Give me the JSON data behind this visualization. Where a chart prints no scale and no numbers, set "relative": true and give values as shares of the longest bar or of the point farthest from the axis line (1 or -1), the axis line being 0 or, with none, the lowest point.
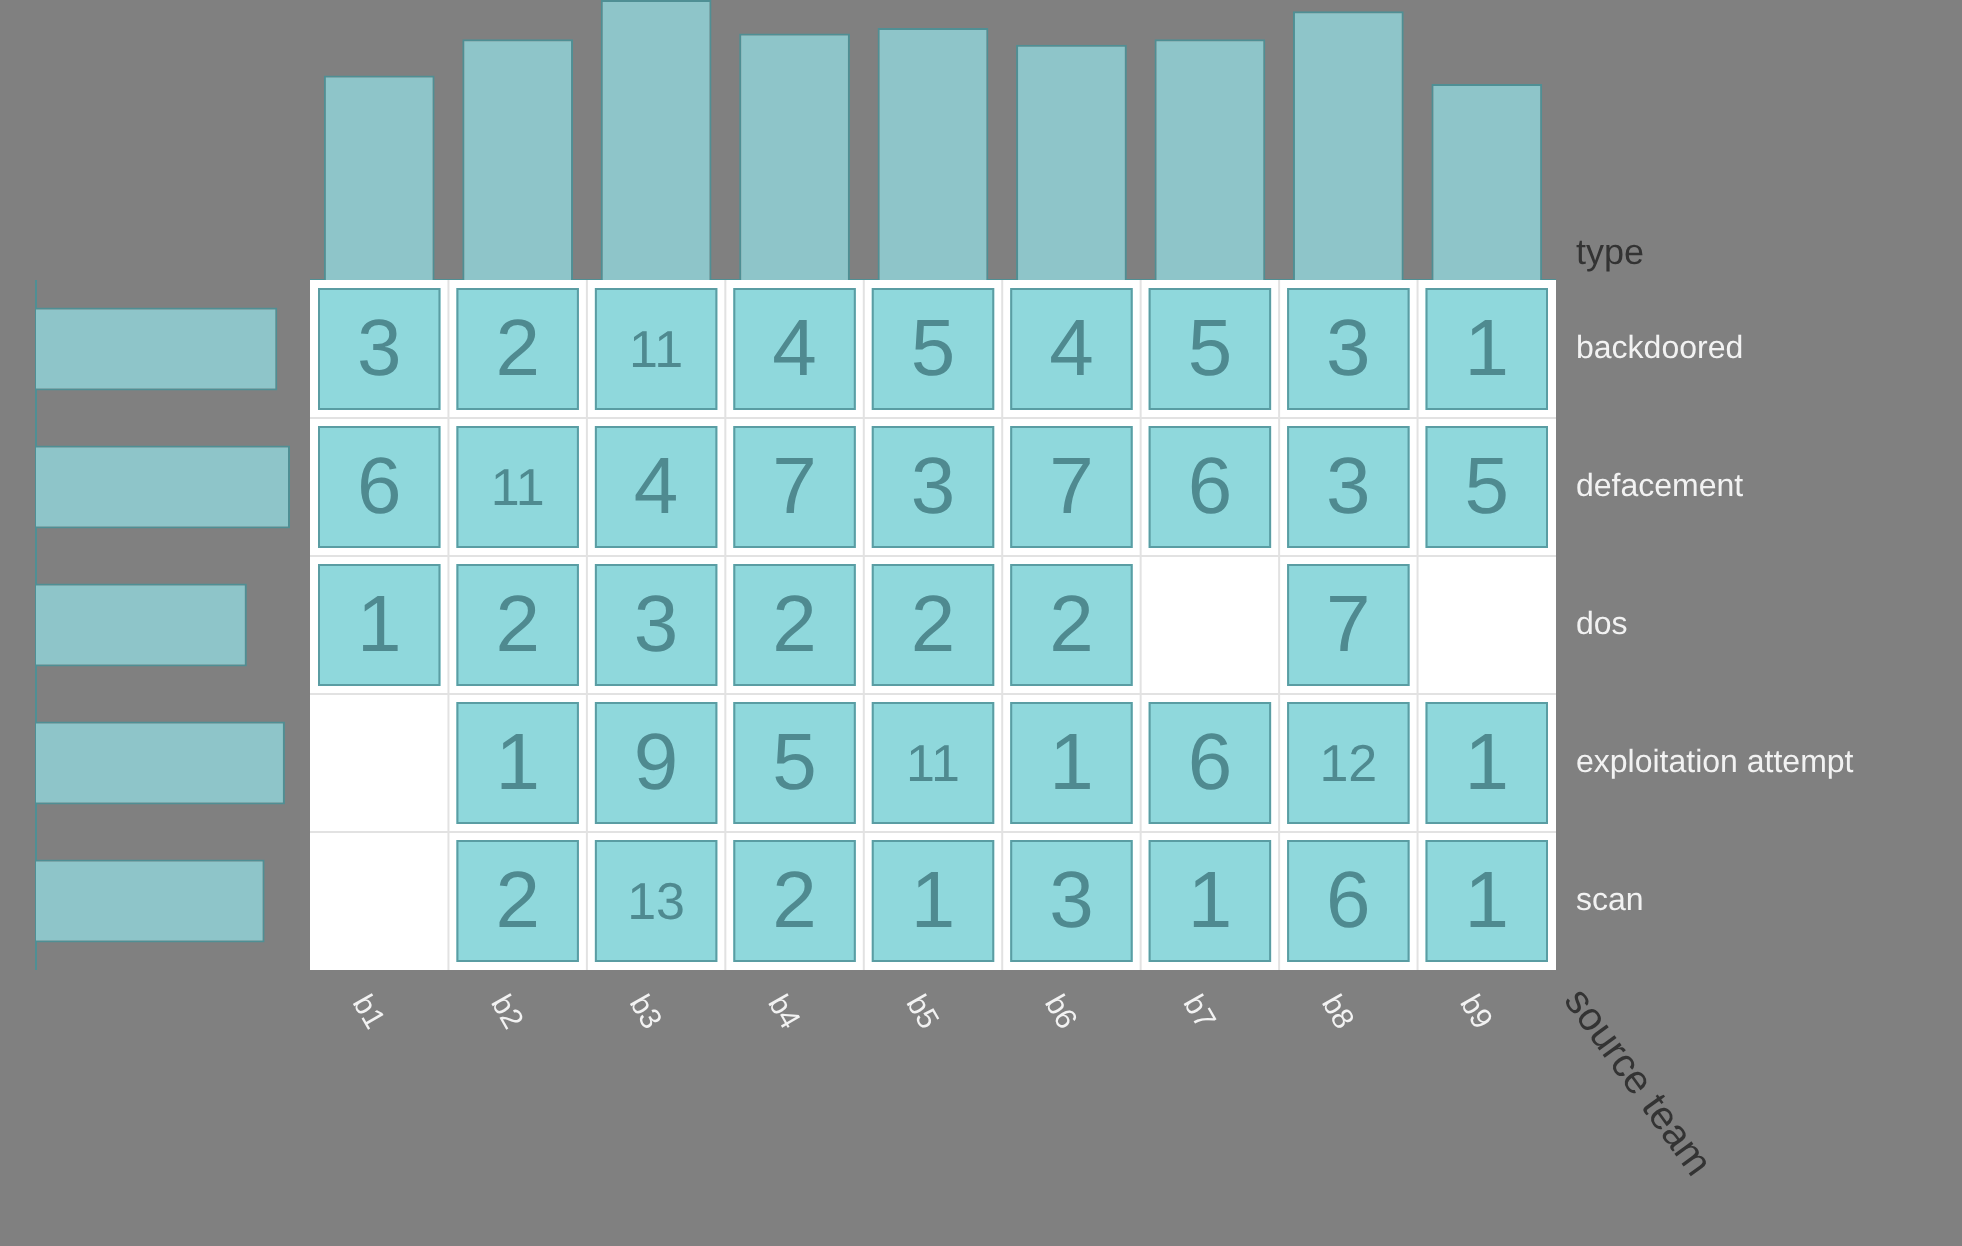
{
  "chart_data": [
    {
      "type": "bar",
      "categories": [
        null,
        null,
        null,
        null,
        null,
        null,
        null,
        null,
        null
      ],
      "values": [
        0.73,
        0.86,
        1,
        0.88,
        0.9,
        0.84,
        0.86,
        0.96,
        0.7
      ],
      "relative": true,
      "color": "#8ec5c9",
      "tick_labels": false
    },
    {
      "type": "bar",
      "orientation": "horizontal",
      "categories": [
        null,
        null,
        null,
        null,
        null
      ],
      "values": [
        0.95,
        1,
        0.83,
        0.98,
        0.9
      ],
      "relative": true,
      "color": "#8ec5c9",
      "tick_labels": false
    },
    {
      "type": "heatmap",
      "xlabel": "source team",
      "ylabel": "type",
      "categories": [
        "b1",
        "b2",
        "b3",
        "b4",
        "b5",
        "b6",
        "b7",
        "b8",
        "b9"
      ],
      "y_categories": [
        "backdoored",
        "defacement",
        "dos",
        "exploitation attempt",
        "scan"
      ],
      "cells": [
        [
          3,
          2,
          11,
          4,
          5,
          4,
          5,
          3,
          1
        ],
        [
          6,
          11,
          4,
          7,
          3,
          7,
          6,
          3,
          5
        ],
        [
          1,
          2,
          3,
          2,
          2,
          2,
          null,
          7,
          null
        ],
        [
          null,
          1,
          9,
          5,
          11,
          1,
          6,
          12,
          1
        ],
        [
          null,
          2,
          13,
          2,
          1,
          3,
          1,
          6,
          1
        ]
      ],
      "color": "#8fd8dc",
      "data_labels": true
    }
  ]
}
